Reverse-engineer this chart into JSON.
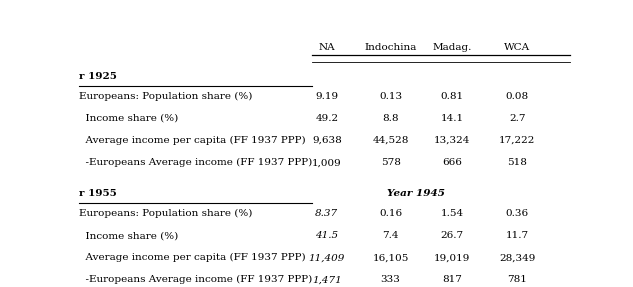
{
  "col_headers": [
    "NA",
    "Indochina",
    "Madag.",
    "WCA"
  ],
  "section1_title": "r 1925",
  "section1_rows": [
    [
      "Europeans: Population share (%)",
      "9.19",
      "0.13",
      "0.81",
      "0.08"
    ],
    [
      "  Income share (%)",
      "49.2",
      "8.8",
      "14.1",
      "2.7"
    ],
    [
      "  Average income per capita (FF 1937 PPP)",
      "9,638",
      "44,528",
      "13,324",
      "17,222"
    ],
    [
      "  -Europeans Average income (FF 1937 PPP)",
      "1,009",
      "578",
      "666",
      "518"
    ]
  ],
  "section2_title": "r 1955",
  "section2_subtitle": "Year 1945",
  "section2_rows": [
    [
      "Europeans: Population share (%)",
      "8.37",
      "0.16",
      "1.54",
      "0.36"
    ],
    [
      "  Income share (%)",
      "41.5",
      "7.4",
      "26.7",
      "11.7"
    ],
    [
      "  Average income per capita (FF 1937 PPP)",
      "11,409",
      "16,105",
      "19,019",
      "28,349"
    ],
    [
      "  -Europeans Average income (FF 1937 PPP)",
      "1,471",
      "333",
      "817",
      "781"
    ]
  ],
  "section2_italic_col": 1,
  "bg_color": "#ffffff",
  "text_color": "#000000",
  "font_size": 7.5
}
